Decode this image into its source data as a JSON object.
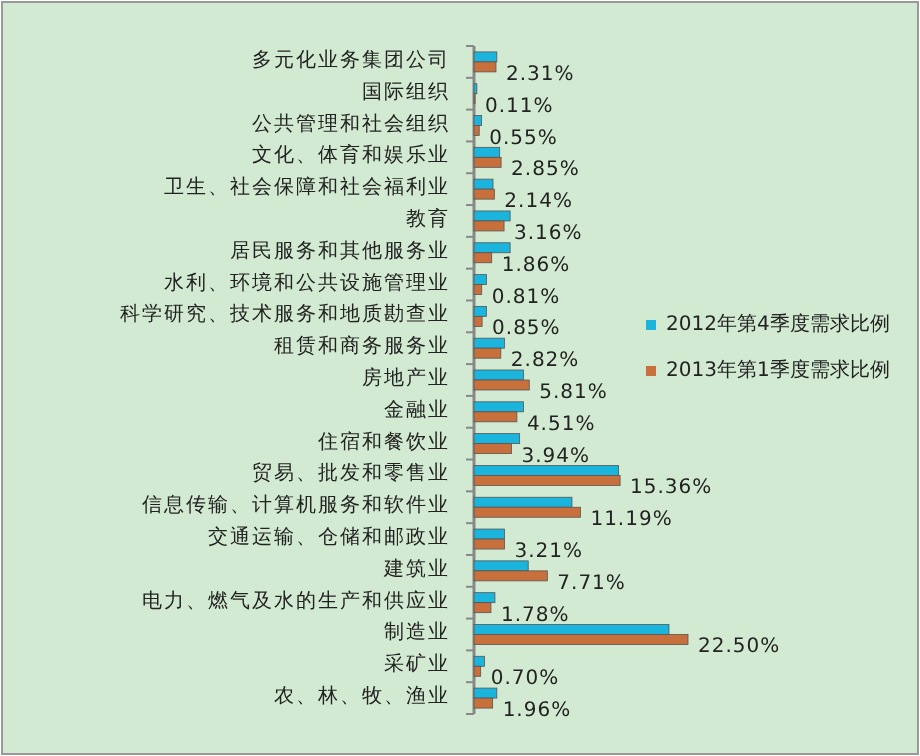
{
  "chart_data": {
    "type": "bar",
    "orientation": "horizontal",
    "legend": "right",
    "categories": [
      "多元化业务集团公司",
      "国际组织",
      "公共管理和社会组织",
      "文化、体育和娱乐业",
      "卫生、社会保障和社会福利业",
      "教育",
      "居民服务和其他服务业",
      "水利、环境和公共设施管理业",
      "科学研究、技术服务和地质勘查业",
      "租赁和商务服务业",
      "房地产业",
      "金融业",
      "住宿和餐饮业",
      "贸易、批发和零售业",
      "信息传输、计算机服务和软件业",
      "交通运输、仓储和邮政业",
      "建筑业",
      "电力、燃气及水的生产和供应业",
      "制造业",
      "采矿业",
      "农、林、牧、渔业"
    ],
    "series": [
      {
        "name": "2012年第4季度需求比例",
        "color": "#1ab4dc",
        "values": [
          2.4,
          0.3,
          0.8,
          2.7,
          2.0,
          3.8,
          3.8,
          1.3,
          1.3,
          3.2,
          5.2,
          5.2,
          4.8,
          15.2,
          10.3,
          3.2,
          5.7,
          2.2,
          20.5,
          1.1,
          2.4
        ]
      },
      {
        "name": "2013年第1季度需求比例",
        "color": "#c8703c",
        "values": [
          2.31,
          0.11,
          0.55,
          2.85,
          2.14,
          3.16,
          1.86,
          0.81,
          0.85,
          2.82,
          5.81,
          4.51,
          3.94,
          15.36,
          11.19,
          3.21,
          7.71,
          1.78,
          22.5,
          0.7,
          1.96
        ],
        "value_labels": [
          "2.31%",
          "0.11%",
          "0.55%",
          "2.85%",
          "2.14%",
          "3.16%",
          "1.86%",
          "0.81%",
          "0.85%",
          "2.82%",
          "5.81%",
          "4.51%",
          "3.94%",
          "15.36%",
          "11.19%",
          "3.21%",
          "7.71%",
          "1.78%",
          "22.50%",
          "0.70%",
          "1.96%"
        ]
      }
    ]
  }
}
